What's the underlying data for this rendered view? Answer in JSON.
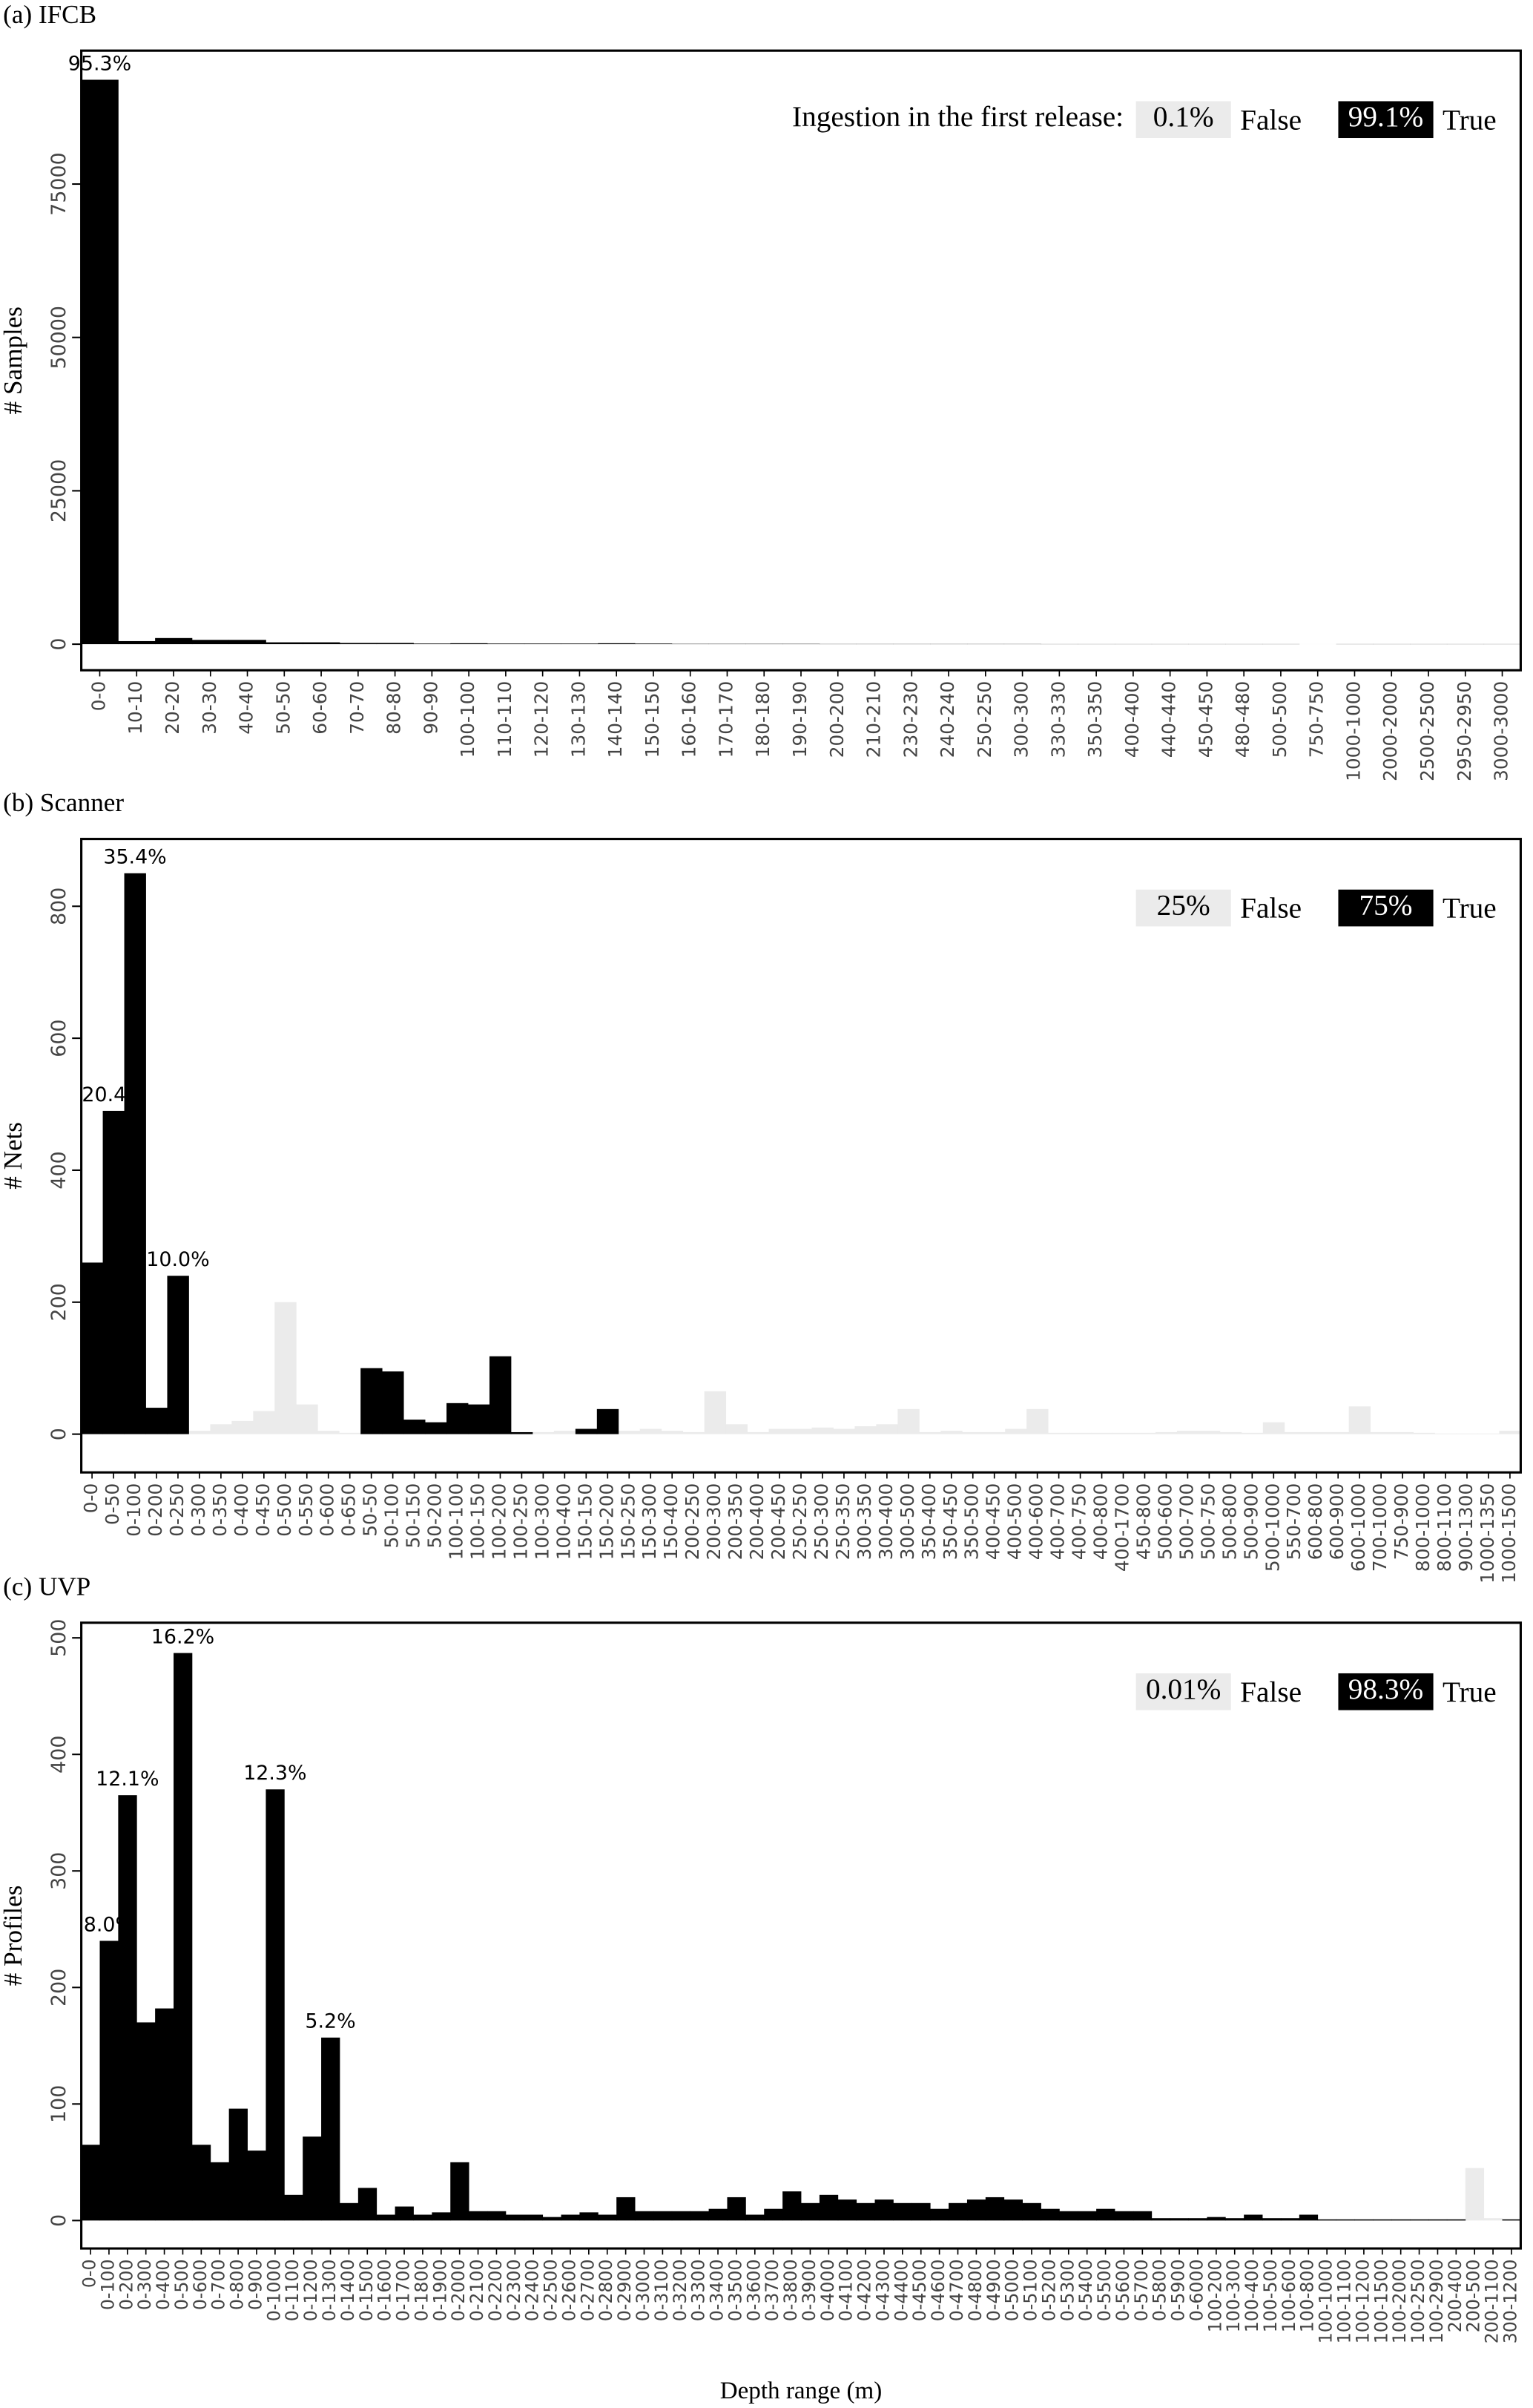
{
  "chart_data": [
    {
      "type": "bar",
      "title": "(a) IFCB",
      "y_label": "# Samples",
      "legend_title": "Ingestion in the first release:",
      "categories": [
        "0-0",
        "10-10",
        "20-20",
        "30-30",
        "40-40",
        "50-50",
        "60-60",
        "70-70",
        "80-80",
        "90-90",
        "100-100",
        "110-110",
        "120-120",
        "130-130",
        "140-140",
        "150-150",
        "160-160",
        "170-170",
        "180-180",
        "190-190",
        "200-200",
        "210-210",
        "230-230",
        "240-240",
        "250-250",
        "300-300",
        "330-330",
        "350-350",
        "400-400",
        "440-440",
        "450-450",
        "480-480",
        "500-500",
        "750-750",
        "1000-1000",
        "2000-2000",
        "2500-2500",
        "2950-2950",
        "3000-3000"
      ],
      "series": [
        {
          "name": "False",
          "share": "0.1%",
          "color": "#ebebeb",
          "values": [
            null,
            null,
            null,
            null,
            null,
            null,
            null,
            null,
            null,
            null,
            null,
            null,
            null,
            null,
            null,
            null,
            null,
            null,
            null,
            null,
            null,
            null,
            null,
            null,
            null,
            null,
            null,
            null,
            null,
            null,
            null,
            null,
            null,
            20,
            null,
            null,
            null,
            null,
            null
          ]
        },
        {
          "name": "True",
          "share": "99.1%",
          "color": "#000000",
          "values": [
            92000,
            500,
            1000,
            700,
            700,
            300,
            300,
            200,
            200,
            100,
            150,
            100,
            100,
            100,
            150,
            100,
            50,
            50,
            50,
            50,
            30,
            30,
            30,
            30,
            30,
            30,
            20,
            20,
            20,
            20,
            20,
            20,
            20,
            null,
            20,
            20,
            20,
            20,
            20
          ]
        }
      ],
      "annotations": [
        {
          "category": "0-0",
          "text": "95.3%"
        }
      ],
      "ylim": [
        -4250,
        96750
      ],
      "yticks": [
        0,
        25000,
        50000,
        75000
      ]
    },
    {
      "type": "bar",
      "title": "(b) Scanner",
      "y_label": "# Nets",
      "categories": [
        "0-0",
        "0-50",
        "0-100",
        "0-200",
        "0-250",
        "0-300",
        "0-350",
        "0-400",
        "0-450",
        "0-500",
        "0-550",
        "0-600",
        "0-650",
        "50-50",
        "50-100",
        "50-150",
        "50-200",
        "100-100",
        "100-150",
        "100-200",
        "100-250",
        "100-300",
        "100-400",
        "150-150",
        "150-200",
        "150-250",
        "150-300",
        "150-400",
        "200-250",
        "200-300",
        "200-350",
        "200-400",
        "200-450",
        "250-250",
        "250-300",
        "250-350",
        "300-350",
        "300-400",
        "300-500",
        "350-400",
        "350-450",
        "350-500",
        "400-450",
        "400-500",
        "400-600",
        "400-700",
        "400-750",
        "400-800",
        "400-1700",
        "450-800",
        "500-600",
        "500-700",
        "500-750",
        "500-800",
        "500-900",
        "500-1000",
        "550-700",
        "600-800",
        "600-900",
        "600-1000",
        "700-1000",
        "750-900",
        "800-1000",
        "800-1100",
        "900-1300",
        "1000-1350",
        "1000-1500"
      ],
      "series": [
        {
          "name": "False",
          "share": "25%",
          "color": "#ebebeb",
          "values": [
            null,
            null,
            null,
            null,
            null,
            5,
            15,
            20,
            35,
            200,
            45,
            5,
            2,
            null,
            null,
            null,
            null,
            null,
            null,
            null,
            null,
            3,
            5,
            null,
            null,
            5,
            8,
            5,
            3,
            65,
            15,
            3,
            8,
            8,
            10,
            8,
            12,
            15,
            38,
            3,
            5,
            3,
            3,
            8,
            38,
            2,
            2,
            2,
            2,
            2,
            3,
            5,
            5,
            3,
            2,
            18,
            3,
            3,
            3,
            42,
            3,
            3,
            2,
            1,
            1,
            1,
            5
          ]
        },
        {
          "name": "True",
          "share": "75%",
          "color": "#000000",
          "values": [
            260,
            490,
            850,
            40,
            240,
            null,
            null,
            null,
            null,
            null,
            null,
            null,
            null,
            100,
            95,
            22,
            18,
            47,
            45,
            118,
            3,
            null,
            null,
            8,
            38,
            null,
            null,
            null,
            null,
            null,
            null,
            null,
            null,
            null,
            null,
            null,
            null,
            null,
            null,
            null,
            null,
            null,
            null,
            null,
            null,
            null,
            null,
            null,
            null,
            null,
            null,
            null,
            null,
            null,
            null,
            null,
            null,
            null,
            null,
            null,
            null,
            null,
            null,
            null,
            null,
            null,
            null
          ]
        }
      ],
      "annotations": [
        {
          "category": "0-50",
          "text": "20.4%"
        },
        {
          "category": "0-100",
          "text": "35.4%"
        },
        {
          "category": "0-250",
          "text": "10.0%"
        }
      ],
      "ylim": [
        -58,
        902
      ],
      "yticks": [
        0,
        200,
        400,
        600,
        800
      ]
    },
    {
      "type": "bar",
      "title": "(c) UVP",
      "y_label": "# Profiles",
      "x_label": "Depth range (m)",
      "categories": [
        "0-0",
        "0-100",
        "0-200",
        "0-300",
        "0-400",
        "0-500",
        "0-600",
        "0-700",
        "0-800",
        "0-900",
        "0-1000",
        "0-1100",
        "0-1200",
        "0-1300",
        "0-1400",
        "0-1500",
        "0-1600",
        "0-1700",
        "0-1800",
        "0-1900",
        "0-2000",
        "0-2100",
        "0-2200",
        "0-2300",
        "0-2400",
        "0-2500",
        "0-2600",
        "0-2700",
        "0-2800",
        "0-2900",
        "0-3000",
        "0-3100",
        "0-3200",
        "0-3300",
        "0-3400",
        "0-3500",
        "0-3600",
        "0-3700",
        "0-3800",
        "0-3900",
        "0-4000",
        "0-4100",
        "0-4200",
        "0-4300",
        "0-4400",
        "0-4500",
        "0-4600",
        "0-4700",
        "0-4800",
        "0-4900",
        "0-5000",
        "0-5100",
        "0-5200",
        "0-5300",
        "0-5400",
        "0-5500",
        "0-5600",
        "0-5700",
        "0-5800",
        "0-5900",
        "0-6000",
        "100-200",
        "100-300",
        "100-400",
        "100-500",
        "100-600",
        "100-800",
        "100-1000",
        "100-1100",
        "100-1200",
        "100-1500",
        "100-2000",
        "100-2500",
        "100-2900",
        "200-400",
        "200-500",
        "200-1100",
        "300-1200"
      ],
      "series": [
        {
          "name": "False",
          "share": "0.01%",
          "color": "#ebebeb",
          "values": [
            null,
            null,
            null,
            null,
            null,
            null,
            null,
            null,
            null,
            null,
            null,
            null,
            null,
            null,
            null,
            null,
            null,
            null,
            null,
            null,
            null,
            null,
            null,
            null,
            null,
            null,
            null,
            null,
            null,
            null,
            null,
            null,
            null,
            null,
            null,
            null,
            null,
            null,
            null,
            null,
            null,
            null,
            null,
            null,
            null,
            null,
            null,
            null,
            null,
            null,
            null,
            null,
            null,
            null,
            null,
            null,
            null,
            null,
            null,
            null,
            null,
            null,
            null,
            null,
            null,
            null,
            null,
            null,
            null,
            null,
            null,
            null,
            null,
            null,
            null,
            45,
            2,
            null
          ]
        },
        {
          "name": "True",
          "share": "98.3%",
          "color": "#000000",
          "values": [
            65,
            240,
            365,
            170,
            182,
            487,
            65,
            50,
            96,
            60,
            370,
            22,
            72,
            157,
            15,
            28,
            5,
            12,
            5,
            7,
            50,
            8,
            8,
            5,
            5,
            3,
            5,
            7,
            5,
            20,
            8,
            8,
            8,
            8,
            10,
            20,
            5,
            10,
            25,
            15,
            22,
            18,
            15,
            18,
            15,
            15,
            10,
            15,
            18,
            20,
            18,
            15,
            10,
            8,
            8,
            10,
            8,
            8,
            2,
            2,
            2,
            3,
            2,
            5,
            2,
            2,
            5,
            1,
            1,
            1,
            1,
            1,
            1,
            1,
            1,
            null,
            null,
            1
          ]
        }
      ],
      "annotations": [
        {
          "category": "0-100",
          "text": "8.0%"
        },
        {
          "category": "0-200",
          "text": "12.1%"
        },
        {
          "category": "0-500",
          "text": "16.2%"
        },
        {
          "category": "0-1000",
          "text": "12.3%"
        },
        {
          "category": "0-1300",
          "text": "5.2%"
        }
      ],
      "ylim": [
        -24,
        513
      ],
      "yticks": [
        0,
        100,
        200,
        300,
        400,
        500
      ]
    }
  ]
}
